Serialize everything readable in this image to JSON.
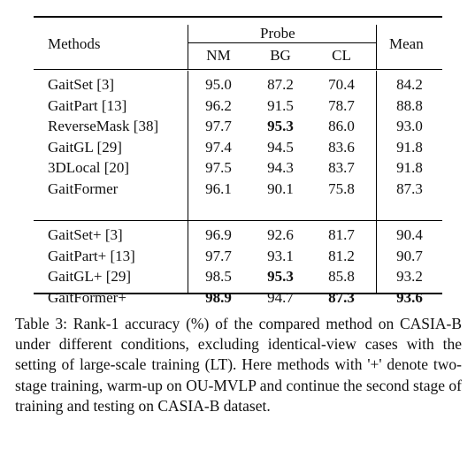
{
  "table": {
    "header": {
      "methods": "Methods",
      "probe": "Probe",
      "mean": "Mean",
      "nm": "NM",
      "bg": "BG",
      "cl": "CL"
    },
    "group1": [
      {
        "method": "GaitSet [3]",
        "nm": "95.0",
        "bg": "87.2",
        "cl": "70.4",
        "mean": "84.2",
        "bold": []
      },
      {
        "method": "GaitPart [13]",
        "nm": "96.2",
        "bg": "91.5",
        "cl": "78.7",
        "mean": "88.8",
        "bold": []
      },
      {
        "method": "ReverseMask [38]",
        "nm": "97.7",
        "bg": "95.3",
        "cl": "86.0",
        "mean": "93.0",
        "bold": [
          "bg"
        ]
      },
      {
        "method": "GaitGL [29]",
        "nm": "97.4",
        "bg": "94.5",
        "cl": "83.6",
        "mean": "91.8",
        "bold": []
      },
      {
        "method": "3DLocal [20]",
        "nm": "97.5",
        "bg": "94.3",
        "cl": "83.7",
        "mean": "91.8",
        "bold": []
      },
      {
        "method": "GaitFormer",
        "nm": "96.1",
        "bg": "90.1",
        "cl": "75.8",
        "mean": "87.3",
        "bold": []
      }
    ],
    "group2": [
      {
        "method": "GaitSet+ [3]",
        "nm": "96.9",
        "bg": "92.6",
        "cl": "81.7",
        "mean": "90.4",
        "bold": []
      },
      {
        "method": "GaitPart+ [13]",
        "nm": "97.7",
        "bg": "93.1",
        "cl": "81.2",
        "mean": "90.7",
        "bold": []
      },
      {
        "method": "GaitGL+ [29]",
        "nm": "98.5",
        "bg": "95.3",
        "cl": "85.8",
        "mean": "93.2",
        "bold": [
          "bg"
        ]
      },
      {
        "method": "GaitFormer+",
        "nm": "98.9",
        "bg": "94.7",
        "cl": "87.3",
        "mean": "93.6",
        "bold": [
          "nm",
          "cl",
          "mean"
        ]
      }
    ]
  },
  "caption": "Table 3: Rank-1 accuracy (%) of the compared method on CASIA-B under different conditions, excluding identical-view cases with the setting of large-scale training (LT). Here methods with '+' denote two-stage training, warm-up on OU-MVLP and continue the second stage of training and testing on CASIA-B dataset."
}
